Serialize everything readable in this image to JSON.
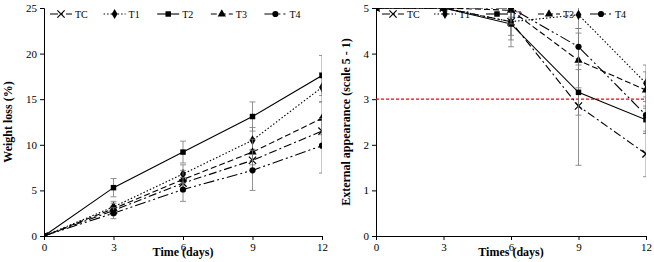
{
  "chart_data": [
    {
      "type": "line",
      "x_label": "Time (days)",
      "y_label": "Weight loss (%)",
      "x": [
        0,
        3,
        6,
        9,
        12
      ],
      "xlim": [
        0,
        12
      ],
      "xticks": [
        0,
        3,
        6,
        9,
        12
      ],
      "ylim": [
        0,
        25
      ],
      "yticks": [
        0,
        5,
        10,
        15,
        20,
        25
      ],
      "legend": "top",
      "series": [
        {
          "name": "TC",
          "color": "#000000",
          "marker": "x",
          "line_style": "dashdot",
          "values": [
            0,
            2.8,
            5.8,
            8.3,
            11.5
          ],
          "errors": [
            0,
            0.5,
            0.9,
            1.2,
            1.5
          ]
        },
        {
          "name": "T1",
          "color": "#000000",
          "marker": "diamond",
          "line_style": "dotted",
          "values": [
            0,
            3.2,
            6.8,
            10.5,
            16.3
          ],
          "errors": [
            0,
            0.6,
            1.0,
            1.4,
            1.6
          ]
        },
        {
          "name": "T2",
          "color": "#000000",
          "marker": "square",
          "line_style": "solid",
          "values": [
            0,
            5.3,
            9.2,
            13.1,
            17.6
          ],
          "errors": [
            0,
            1.0,
            1.2,
            1.6,
            2.2
          ]
        },
        {
          "name": "T3",
          "color": "#000000",
          "marker": "triangle",
          "line_style": "dashed",
          "values": [
            0,
            3.0,
            6.2,
            9.2,
            12.9
          ],
          "errors": [
            0,
            0.6,
            1.0,
            1.4,
            1.8
          ]
        },
        {
          "name": "T4",
          "color": "#000000",
          "marker": "circle",
          "line_style": "longdash",
          "values": [
            0,
            2.5,
            5.1,
            7.2,
            9.9
          ],
          "errors": [
            0,
            0.6,
            1.3,
            2.2,
            3.0
          ]
        }
      ]
    },
    {
      "type": "line",
      "x_label": "Times (days)",
      "y_label": "External appearance (scale 5 - 1)",
      "x": [
        0,
        3,
        6,
        9,
        12
      ],
      "xlim": [
        0,
        12
      ],
      "xticks": [
        0,
        3,
        6,
        9,
        12
      ],
      "ylim": [
        0,
        5
      ],
      "yticks": [
        0,
        1,
        2,
        3,
        4,
        5
      ],
      "legend": "top",
      "reference_line": 3,
      "series": [
        {
          "name": "TC",
          "color": "#000000",
          "marker": "x",
          "line_style": "dashdot",
          "values": [
            5,
            5,
            4.7,
            2.85,
            1.8
          ],
          "errors": [
            0,
            0,
            0.4,
            1.3,
            0.5
          ]
        },
        {
          "name": "T1",
          "color": "#000000",
          "marker": "diamond",
          "line_style": "dotted",
          "values": [
            5,
            5,
            4.7,
            4.85,
            3.35
          ],
          "errors": [
            0,
            0,
            0.3,
            0.3,
            0.4
          ]
        },
        {
          "name": "T2",
          "color": "#000000",
          "marker": "square",
          "line_style": "solid",
          "values": [
            5,
            5,
            4.65,
            3.15,
            2.55
          ],
          "errors": [
            0,
            0,
            0.5,
            0.5,
            0.3
          ]
        },
        {
          "name": "T3",
          "color": "#000000",
          "marker": "triangle",
          "line_style": "dashed",
          "values": [
            5,
            5,
            4.95,
            3.85,
            3.2
          ],
          "errors": [
            0,
            0,
            0.3,
            0.6,
            0.4
          ]
        },
        {
          "name": "T4",
          "color": "#000000",
          "marker": "circle",
          "line_style": "longdash",
          "values": [
            5,
            5,
            5.0,
            4.15,
            2.65
          ],
          "errors": [
            0,
            0,
            0.2,
            0.4,
            0.4
          ]
        }
      ]
    }
  ]
}
